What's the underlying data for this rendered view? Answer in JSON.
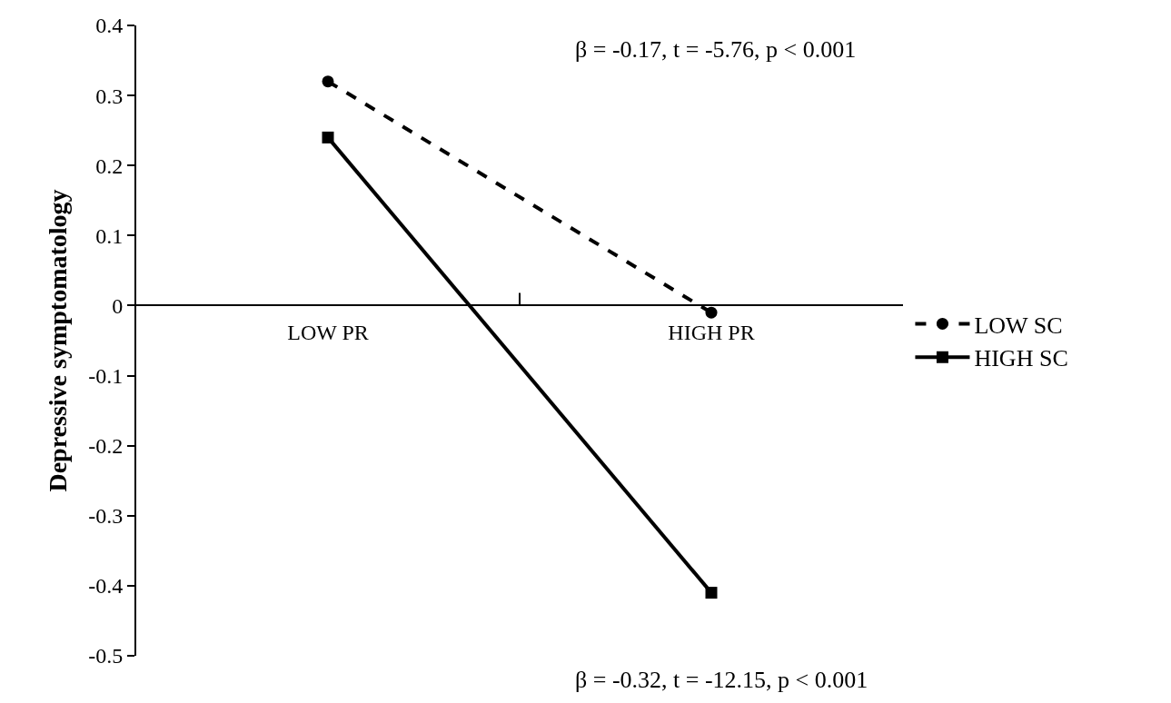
{
  "chart_data": {
    "type": "line",
    "ylabel": "Depressive symptomatology",
    "categories": [
      "LOW PR",
      "HIGH PR"
    ],
    "series": [
      {
        "name": "LOW SC",
        "color": "#000000",
        "values": [
          0.32,
          -0.01
        ],
        "marker": "circle",
        "line_style": "dashed"
      },
      {
        "name": "HIGH SC",
        "color": "#000000",
        "values": [
          0.24,
          -0.41
        ],
        "marker": "square",
        "line_style": "solid"
      }
    ],
    "ylim": [
      -0.5,
      0.4
    ],
    "yticks": [
      {
        "value": -0.5,
        "label": "-0.5"
      },
      {
        "value": -0.4,
        "label": "-0.4"
      },
      {
        "value": -0.3,
        "label": "-0.3"
      },
      {
        "value": -0.2,
        "label": "-0.2"
      },
      {
        "value": -0.1,
        "label": "-0.1"
      },
      {
        "value": 0,
        "label": "0"
      },
      {
        "value": 0.1,
        "label": "0.1"
      },
      {
        "value": 0.2,
        "label": "0.2"
      },
      {
        "value": 0.3,
        "label": "0.3"
      },
      {
        "value": 0.4,
        "label": "0.4"
      }
    ],
    "annotations": [
      "β = -0.17, t = -5.76, p < 0.001",
      "β = -0.32, t = -12.15, p < 0.001"
    ],
    "legend": "right"
  }
}
